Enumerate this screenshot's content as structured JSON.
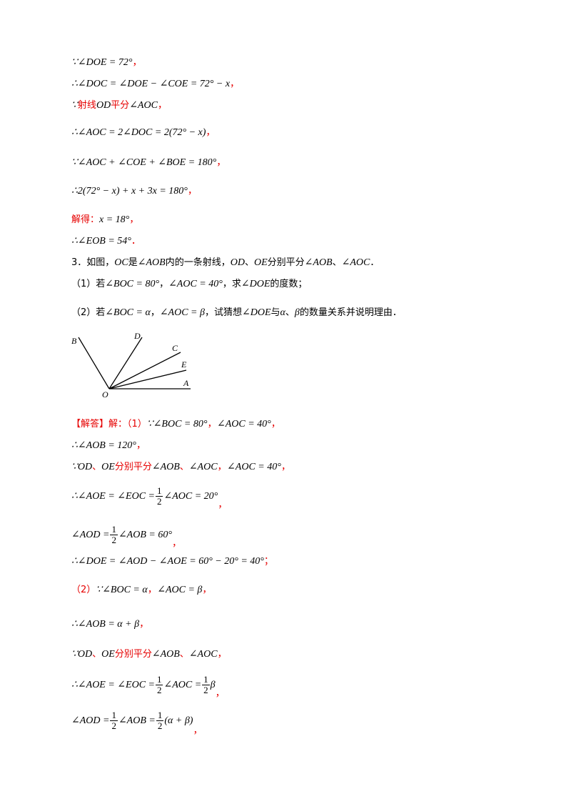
{
  "prev": [
    {
      "math": "∵∠DOE = 72°",
      "tail": "，"
    },
    {
      "math": "∴∠DOC = ∠DOE − ∠COE = 72° − x",
      "tail": "，"
    },
    {
      "pre": "∵",
      "cn_red1": "射线",
      "mid": "OD",
      "cn_red2": "平分",
      "math": "∠AOC",
      "tail": "，"
    },
    {
      "math": "∴∠AOC = 2∠DOC = 2(72° − x)",
      "tail": "，"
    },
    {
      "math": "∵∠AOC + ∠COE + ∠BOE = 180°",
      "tail": "，"
    },
    {
      "math": "∴2(72° − x) + x + 3x = 180°",
      "tail": "，"
    },
    {
      "label": "解得：",
      "math": "x = 18°",
      "tail": "，"
    },
    {
      "math": "∴∠EOB = 54°",
      "tail": "．"
    }
  ],
  "problem": {
    "number": "3．如图，",
    "oc": "OC",
    "t1": "是",
    "aob": "∠AOB",
    "t2": "内的一条射线，",
    "od": "OD",
    "sep1": "、",
    "oe": "OE",
    "t3": "分别平分",
    "aob2": "∠AOB",
    "sep2": "、",
    "aoc": "∠AOC",
    "end": "．",
    "q1_pre": "（1）若",
    "q1_m1": "∠BOC = 80°",
    "q1_c": "，",
    "q1_m2": "∠AOC = 40°",
    "q1_t": "，求",
    "q1_m3": "∠DOE",
    "q1_end": "的度数；",
    "q2_pre": "（2）若",
    "q2_m1": "∠BOC = α",
    "q2_c": "，",
    "q2_m2": "∠AOC = β",
    "q2_t": "，试猜想",
    "q2_m3": "∠DOE",
    "q2_t2": "与",
    "q2_m4": "α",
    "q2_sep": "、",
    "q2_m5": "β",
    "q2_end": "的数量关系并说明理由．"
  },
  "diagram_labels": {
    "B": "B",
    "D": "D",
    "C": "C",
    "E": "E",
    "A": "A",
    "O": "O"
  },
  "solution": {
    "header": "【解答】解：（1）",
    "s1_m1": "∵∠BOC = 80°",
    "s1_c": "，",
    "s1_m2": "∠AOC = 40°",
    "s1_t": "，",
    "s2": "∴∠AOB = 120°",
    "s2_t": "，",
    "s3_m1": "∵OD",
    "s3_sep": "、",
    "s3_m2": "OE",
    "s3_red": "分别平分",
    "s3_m3": "∠AOB",
    "s3_sep2": "、",
    "s3_m4": "∠AOC",
    "s3_c": "，",
    "s3_m5": "∠AOC = 40°",
    "s3_t": "，",
    "s4_a": "∴∠AOE = ∠EOC =",
    "s4_b": "∠AOC = 20°",
    "s4_t": "，",
    "s5_a": "∠AOD =",
    "s5_b": "∠AOB = 60°",
    "s5_t": "，",
    "s6": "∴∠DOE = ∠AOD − ∠AOE = 60° − 20° = 40°",
    "s6_t": "；",
    "s7_pre": "（2）",
    "s7_m1": "∵∠BOC = α",
    "s7_c": "，",
    "s7_m2": "∠AOC = β",
    "s7_t": "，",
    "s8": "∴∠AOB = α + β",
    "s8_t": "，",
    "s9_m1": "∵OD",
    "s9_sep": "、",
    "s9_m2": "OE",
    "s9_red": "分别平分",
    "s9_m3": "∠AOB",
    "s9_sep2": "、",
    "s9_m4": "∠AOC",
    "s9_t": "，",
    "s10_a": "∴∠AOE = ∠EOC =",
    "s10_b": "∠AOC =",
    "s10_c": "β",
    "s10_t": "，",
    "s11_a": "∠AOD =",
    "s11_b": "∠AOB =",
    "s11_c": "(α + β)",
    "s11_t": "，",
    "half_num": "1",
    "half_den": "2"
  }
}
